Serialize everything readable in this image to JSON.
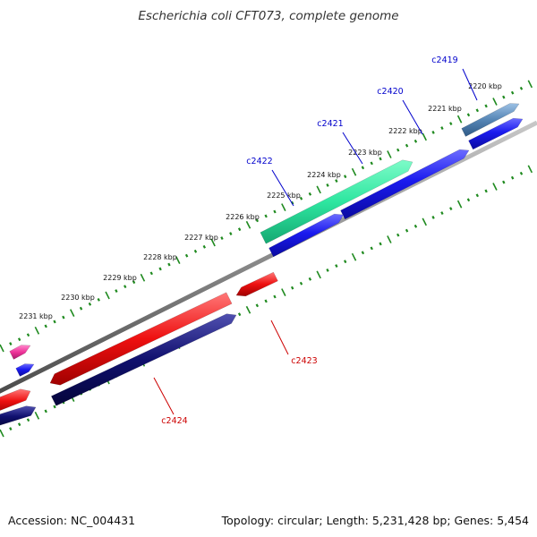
{
  "title": "Escherichia coli CFT073, complete genome",
  "footer": {
    "accession": "Accession: NC_004431",
    "summary": "Topology: circular; Length: 5,231,428 bp; Genes: 5,454"
  },
  "colors": {
    "backbone": "#8a8a8a",
    "ruler": "#1f8a1f",
    "forward_blue": "#1010e0",
    "teal": "#2ee6a0",
    "steel": "#5585b5",
    "red": "#ee1010",
    "navy": "#10106e",
    "magenta": "#ee3399",
    "label_blue": "#0000cc",
    "label_red": "#cc0000"
  },
  "ticks": [
    "2220 kbp",
    "2221 kbp",
    "2222 kbp",
    "2223 kbp",
    "2224 kbp",
    "2225 kbp",
    "2226 kbp",
    "2227 kbp",
    "2228 kbp",
    "2229 kbp",
    "2230 kbp",
    "2231 kbp"
  ],
  "genes": [
    {
      "label": "c2419"
    },
    {
      "label": "c2420"
    },
    {
      "label": "c2421"
    },
    {
      "label": "c2422"
    },
    {
      "label": "c2423"
    },
    {
      "label": "c2424"
    }
  ]
}
